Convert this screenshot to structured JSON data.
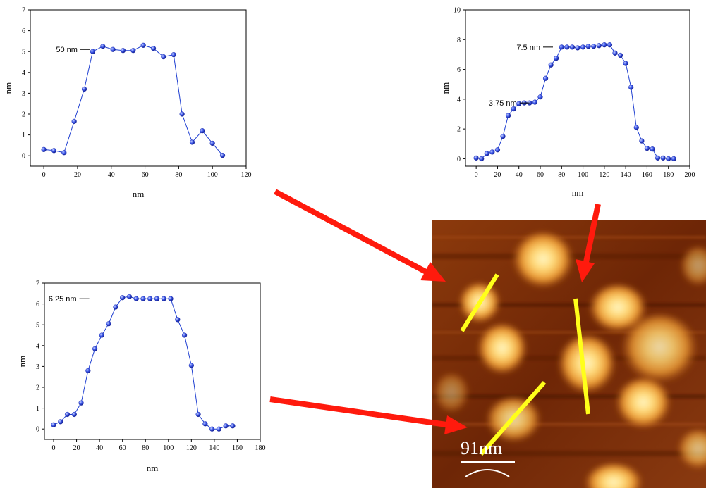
{
  "chart_data": [
    {
      "type": "line",
      "xlabel": "nm",
      "ylabel": "nm",
      "xlim": [
        -8,
        120
      ],
      "ylim": [
        -0.5,
        7
      ],
      "xticks": [
        0,
        20,
        40,
        60,
        80,
        100,
        120
      ],
      "yticks": [
        0,
        1,
        2,
        3,
        4,
        5,
        6,
        7
      ],
      "series_color": "#1f3fd1",
      "x": [
        0,
        6,
        12,
        18,
        24,
        29,
        35,
        41,
        47,
        53,
        59,
        65,
        71,
        77,
        82,
        88,
        94,
        100,
        106
      ],
      "y": [
        0.3,
        0.25,
        0.15,
        1.65,
        3.2,
        5.0,
        5.25,
        5.1,
        5.05,
        5.05,
        5.3,
        5.15,
        4.75,
        4.85,
        2.0,
        0.65,
        1.2,
        0.6,
        0.02
      ],
      "annotations": [
        {
          "text": "50 nm",
          "x": 20,
          "y": 5.1
        }
      ]
    },
    {
      "type": "line",
      "xlabel": "nm",
      "ylabel": "nm",
      "xlim": [
        -10,
        200
      ],
      "ylim": [
        -0.5,
        10
      ],
      "xticks": [
        0,
        20,
        40,
        60,
        80,
        100,
        120,
        140,
        160,
        180,
        200
      ],
      "yticks": [
        0,
        2,
        4,
        6,
        8,
        10
      ],
      "series_color": "#1f3fd1",
      "x": [
        0,
        5,
        10,
        15,
        20,
        25,
        30,
        35,
        40,
        45,
        50,
        55,
        60,
        65,
        70,
        75,
        80,
        85,
        90,
        95,
        100,
        105,
        110,
        115,
        120,
        125,
        130,
        135,
        140,
        145,
        150,
        155,
        160,
        165,
        170,
        175,
        180,
        185
      ],
      "y": [
        0.05,
        0.0,
        0.35,
        0.45,
        0.6,
        1.5,
        2.9,
        3.35,
        3.7,
        3.75,
        3.75,
        3.8,
        4.15,
        5.4,
        6.3,
        6.75,
        7.5,
        7.5,
        7.5,
        7.45,
        7.5,
        7.55,
        7.55,
        7.6,
        7.65,
        7.65,
        7.1,
        6.95,
        6.4,
        4.8,
        2.1,
        1.2,
        0.7,
        0.65,
        0.05,
        0.05,
        0.0,
        0.0
      ],
      "annotations": [
        {
          "text": "7.5 nm",
          "x": 60,
          "y": 7.5
        },
        {
          "text": "3.75 nm",
          "x": 38,
          "y": 3.75
        }
      ]
    },
    {
      "type": "line",
      "xlabel": "nm",
      "ylabel": "nm",
      "xlim": [
        -8,
        180
      ],
      "ylim": [
        -0.5,
        7
      ],
      "xticks": [
        0,
        20,
        40,
        60,
        80,
        100,
        120,
        140,
        160,
        180
      ],
      "yticks": [
        0,
        1,
        2,
        3,
        4,
        5,
        6,
        7
      ],
      "series_color": "#1f3fd1",
      "x": [
        0,
        6,
        12,
        18,
        24,
        30,
        36,
        42,
        48,
        54,
        60,
        66,
        72,
        78,
        84,
        90,
        96,
        102,
        108,
        114,
        120,
        126,
        132,
        138,
        144,
        150,
        156
      ],
      "y": [
        0.2,
        0.35,
        0.7,
        0.7,
        1.25,
        2.8,
        3.85,
        4.5,
        5.05,
        5.85,
        6.3,
        6.35,
        6.25,
        6.25,
        6.25,
        6.25,
        6.25,
        6.25,
        5.25,
        4.5,
        3.05,
        0.7,
        0.25,
        0.0,
        0.0,
        0.15,
        0.15
      ],
      "annotations": [
        {
          "text": "6.25 nm",
          "x": 20,
          "y": 6.25
        }
      ]
    }
  ],
  "afm_image": {
    "scale_bar_label": "91nm",
    "line_color": "#ffff1a",
    "arrow_color": "#ff1a0d",
    "background_color": "#7a2a08"
  }
}
